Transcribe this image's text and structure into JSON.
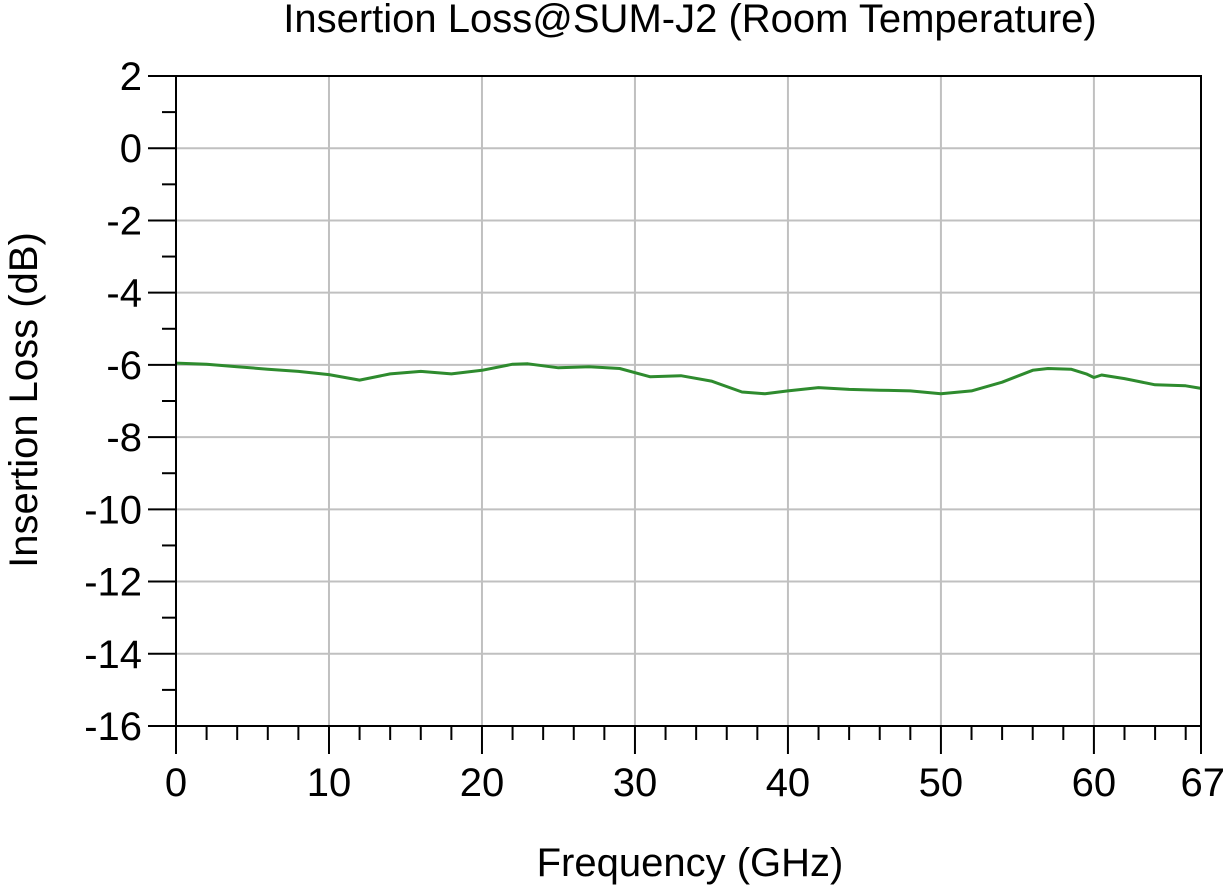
{
  "chart_data": {
    "type": "line",
    "title": "Insertion Loss@SUM-J2 (Room Temperature)",
    "xlabel": "Frequency (GHz)",
    "ylabel": "Insertion Loss (dB)",
    "xlim": [
      0,
      67
    ],
    "ylim": [
      -16,
      2
    ],
    "x_ticks": [
      0,
      10,
      20,
      30,
      40,
      50,
      60,
      67
    ],
    "y_ticks": [
      2,
      0,
      -2,
      -4,
      -6,
      -8,
      -10,
      -12,
      -14,
      -16
    ],
    "grid": true,
    "series": [
      {
        "color": "#2e8b2e",
        "x": [
          0,
          2,
          4,
          6,
          8,
          10,
          12,
          14,
          16,
          18,
          20,
          22,
          23,
          25,
          27,
          29,
          31,
          33,
          35,
          37,
          38.5,
          40,
          42,
          44,
          46,
          48,
          50,
          52,
          54,
          56,
          57,
          58.5,
          59.5,
          60,
          60.5,
          62,
          64,
          66,
          67
        ],
        "y": [
          -5.95,
          -5.98,
          -6.05,
          -6.12,
          -6.18,
          -6.27,
          -6.42,
          -6.25,
          -6.18,
          -6.25,
          -6.15,
          -5.98,
          -5.97,
          -6.08,
          -6.05,
          -6.1,
          -6.33,
          -6.3,
          -6.45,
          -6.75,
          -6.8,
          -6.72,
          -6.63,
          -6.68,
          -6.7,
          -6.72,
          -6.8,
          -6.72,
          -6.48,
          -6.15,
          -6.1,
          -6.12,
          -6.25,
          -6.35,
          -6.28,
          -6.38,
          -6.55,
          -6.58,
          -6.65
        ]
      }
    ]
  }
}
